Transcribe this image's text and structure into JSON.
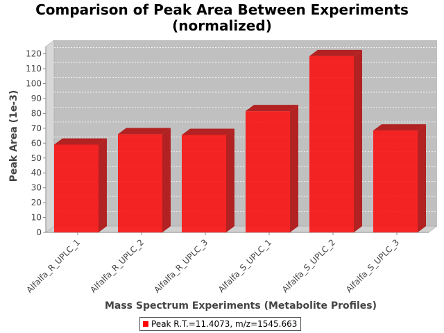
{
  "chart_data": {
    "type": "bar",
    "title_lines": [
      "Comparison of Peak Area Between Experiments",
      "(normalized)"
    ],
    "xlabel": "Mass Spectrum Experiments (Metabolite Profiles)",
    "ylabel": "Peak Area (1e-3)",
    "categories": [
      "Alfalfa_R_UPLC_1",
      "Alfalfa_R_UPLC_2",
      "Alfalfa_R_UPLC_3",
      "Alfalfa_S_UPLC_1",
      "Alfalfa_S_UPLC_2",
      "Alfalfa_S_UPLC_3"
    ],
    "series": [
      {
        "name": "Peak R.T.=11.4073, m/z=1545.663",
        "values": [
          59,
          66,
          65.5,
          81.5,
          118.5,
          68.5
        ]
      }
    ],
    "yticks": [
      "0",
      "10",
      "20",
      "30",
      "40",
      "50",
      "60",
      "70",
      "80",
      "90",
      "100",
      "110",
      "120"
    ],
    "ylim": [
      0,
      125
    ],
    "grid": true,
    "legend_position": "bottom",
    "bar_color": "#ff0000",
    "bar_dark_color": "#b22222",
    "plot_bg": "#c0c0c0"
  }
}
